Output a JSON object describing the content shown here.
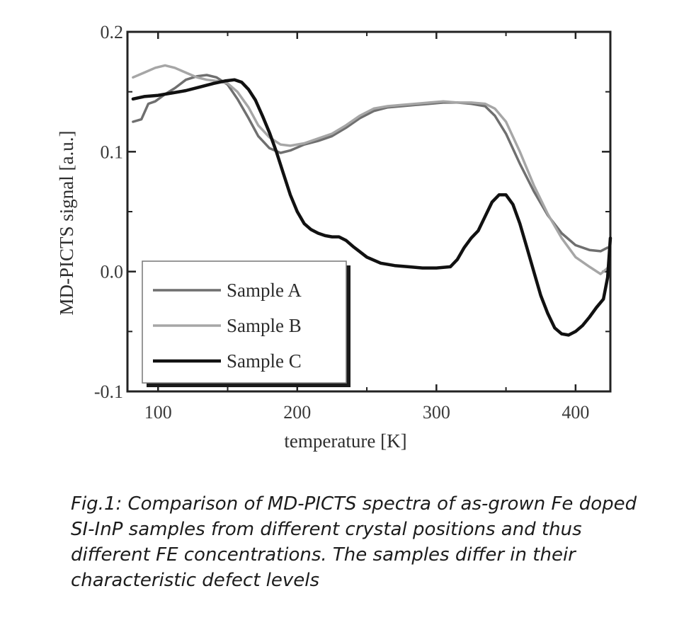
{
  "chart_data": {
    "type": "line",
    "title": "",
    "xlabel": "temperature [K]",
    "ylabel": "MD-PICTS signal [a.u.]",
    "xlim": [
      78,
      425
    ],
    "ylim": [
      -0.1,
      0.2
    ],
    "x_ticks": [
      100,
      200,
      300,
      400
    ],
    "x_tick_labels": [
      "100",
      "200",
      "300",
      "400"
    ],
    "y_ticks": [
      -0.1,
      0.0,
      0.1,
      0.2
    ],
    "y_tick_labels": [
      "-0.1",
      "0.0",
      "0.1",
      "0.2"
    ],
    "grid": false,
    "legend_position": "bottom-left",
    "series": [
      {
        "name": "Sample A",
        "color": "#6f6f6f",
        "x": [
          82,
          88,
          93,
          98,
          105,
          112,
          120,
          128,
          135,
          142,
          150,
          157,
          165,
          172,
          180,
          188,
          195,
          205,
          215,
          225,
          235,
          245,
          255,
          265,
          275,
          285,
          295,
          305,
          315,
          325,
          335,
          342,
          350,
          360,
          370,
          380,
          390,
          400,
          410,
          418,
          423
        ],
        "y": [
          0.125,
          0.127,
          0.14,
          0.142,
          0.148,
          0.153,
          0.16,
          0.163,
          0.164,
          0.162,
          0.156,
          0.144,
          0.128,
          0.113,
          0.103,
          0.099,
          0.101,
          0.106,
          0.109,
          0.113,
          0.12,
          0.128,
          0.134,
          0.137,
          0.138,
          0.139,
          0.14,
          0.141,
          0.141,
          0.14,
          0.138,
          0.13,
          0.115,
          0.09,
          0.067,
          0.047,
          0.032,
          0.022,
          0.018,
          0.017,
          0.02
        ]
      },
      {
        "name": "Sample B",
        "color": "#a6a6a6",
        "x": [
          82,
          90,
          98,
          105,
          112,
          120,
          128,
          135,
          142,
          150,
          157,
          165,
          172,
          180,
          188,
          195,
          205,
          215,
          225,
          235,
          245,
          255,
          265,
          275,
          285,
          295,
          305,
          315,
          325,
          335,
          342,
          350,
          360,
          370,
          380,
          390,
          400,
          410,
          418,
          423
        ],
        "y": [
          0.162,
          0.166,
          0.17,
          0.172,
          0.17,
          0.166,
          0.162,
          0.16,
          0.159,
          0.157,
          0.15,
          0.137,
          0.122,
          0.112,
          0.106,
          0.105,
          0.107,
          0.111,
          0.115,
          0.122,
          0.13,
          0.136,
          0.138,
          0.139,
          0.14,
          0.141,
          0.142,
          0.141,
          0.141,
          0.14,
          0.136,
          0.125,
          0.1,
          0.072,
          0.048,
          0.028,
          0.012,
          0.004,
          -0.002,
          0.003
        ]
      },
      {
        "name": "Sample C",
        "color": "#111111",
        "x": [
          82,
          90,
          100,
          110,
          120,
          130,
          140,
          148,
          155,
          160,
          165,
          170,
          175,
          180,
          185,
          190,
          195,
          200,
          205,
          210,
          215,
          220,
          225,
          230,
          235,
          240,
          250,
          260,
          270,
          280,
          290,
          300,
          310,
          315,
          320,
          325,
          330,
          335,
          340,
          345,
          350,
          355,
          360,
          365,
          370,
          375,
          380,
          385,
          390,
          395,
          400,
          405,
          410,
          415,
          420,
          423,
          425
        ],
        "y": [
          0.144,
          0.146,
          0.147,
          0.149,
          0.151,
          0.154,
          0.157,
          0.159,
          0.16,
          0.158,
          0.152,
          0.143,
          0.13,
          0.116,
          0.1,
          0.082,
          0.064,
          0.05,
          0.04,
          0.035,
          0.032,
          0.03,
          0.029,
          0.029,
          0.026,
          0.021,
          0.012,
          0.007,
          0.005,
          0.004,
          0.003,
          0.003,
          0.004,
          0.01,
          0.02,
          0.028,
          0.034,
          0.046,
          0.058,
          0.064,
          0.064,
          0.056,
          0.04,
          0.02,
          0.0,
          -0.02,
          -0.035,
          -0.047,
          -0.052,
          -0.053,
          -0.05,
          -0.045,
          -0.038,
          -0.03,
          -0.023,
          -0.005,
          0.028
        ]
      }
    ]
  },
  "caption": "Fig.1: Comparison of MD-PICTS spectra of as-grown Fe doped SI-InP samples from different crystal positions and thus different FE concentrations. The samples differ in their characteristic defect levels"
}
